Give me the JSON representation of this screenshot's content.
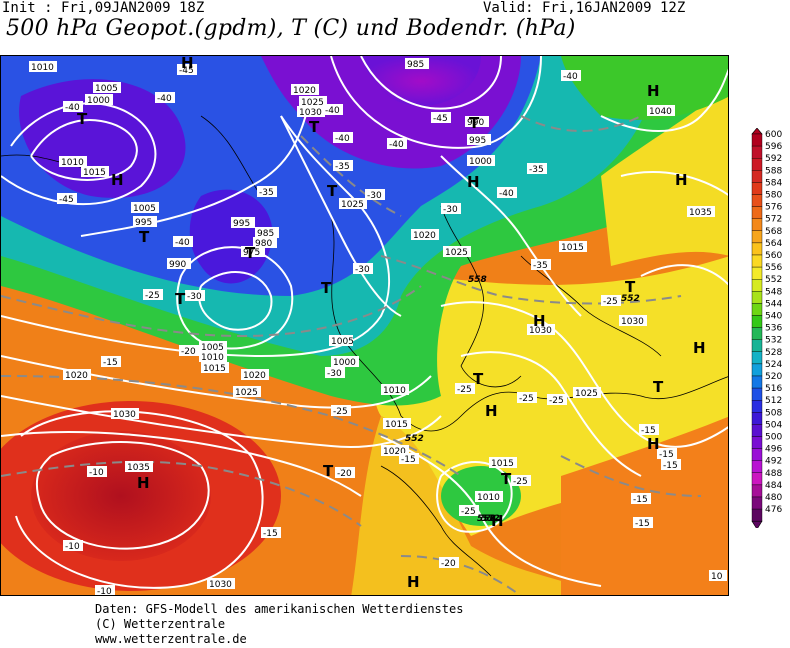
{
  "header": {
    "init": "Init : Fri,09JAN2009 18Z",
    "valid": "Valid: Fri,16JAN2009 12Z",
    "title": "500 hPa Geopot.(gpdm), T (C) und Bodendr. (hPa)"
  },
  "legend": {
    "values": [
      "600",
      "596",
      "592",
      "588",
      "584",
      "580",
      "576",
      "572",
      "568",
      "564",
      "560",
      "556",
      "552",
      "548",
      "544",
      "540",
      "536",
      "532",
      "528",
      "524",
      "520",
      "516",
      "512",
      "508",
      "504",
      "500",
      "496",
      "492",
      "488",
      "484",
      "480",
      "476"
    ],
    "colors": [
      "#b0001e",
      "#c0102a",
      "#cc1a26",
      "#d42a22",
      "#e03a1a",
      "#e8501a",
      "#ee6a18",
      "#f3881a",
      "#f7a51c",
      "#fbc21c",
      "#fbd924",
      "#f3ea2a",
      "#d6ea20",
      "#a8e21a",
      "#6ed614",
      "#34c818",
      "#24b858",
      "#18b496",
      "#14b2c6",
      "#12a0dc",
      "#1478e6",
      "#1e50e6",
      "#2a2ee2",
      "#3c18d6",
      "#5a10d0",
      "#7a0ed2",
      "#9a10d6",
      "#b812d2",
      "#cc16c0",
      "#a60e98",
      "#7a087a",
      "#5c0660"
    ]
  },
  "map": {
    "pressure_labels": [
      "1010",
      "1005",
      "1000",
      "1020",
      "1025",
      "1030",
      "985",
      "990",
      "995",
      "1000",
      "1040",
      "1015",
      "1010",
      "1005",
      "995",
      "1025",
      "1035",
      "985",
      "980",
      "975",
      "990",
      "995",
      "1020",
      "1025",
      "1015",
      "1030",
      "1005",
      "1010",
      "1015",
      "1020",
      "1025",
      "1030",
      "1035",
      "1020",
      "1015",
      "1010",
      "1025",
      "1030",
      "1020",
      "1015",
      "1030",
      "1010",
      "1005",
      "1000"
    ],
    "temp_labels": [
      "-40",
      "-40",
      "-45",
      "-40",
      "-40",
      "-35",
      "-40",
      "-45",
      "-45",
      "-40",
      "-35",
      "-40",
      "-35",
      "-30",
      "-30",
      "-35",
      "-40",
      "-30",
      "-25",
      "-30",
      "-30",
      "-25",
      "-20",
      "-15",
      "-10",
      "-25",
      "-20",
      "-25",
      "-25",
      "-15",
      "-15",
      "-10",
      "-15",
      "-15",
      "-15",
      "-10",
      "-25",
      "-20",
      "-15",
      "-15",
      "-25",
      "-25"
    ],
    "geopot_labels": [
      "558",
      "552",
      "552",
      "558",
      "552"
    ],
    "highs": [
      "H",
      "H",
      "H",
      "H",
      "H",
      "H",
      "H",
      "H",
      "H",
      "H",
      "H",
      "H"
    ],
    "lows": [
      "T",
      "T",
      "T",
      "T",
      "T",
      "T",
      "T",
      "T",
      "T",
      "T",
      "T",
      "T",
      "T"
    ],
    "corner_label": "10"
  },
  "credits": {
    "line1": "Daten: GFS-Modell des amerikanischen Wetterdienstes",
    "line2": "(C) Wetterzentrale",
    "line3": "www.wetterzentrale.de"
  }
}
